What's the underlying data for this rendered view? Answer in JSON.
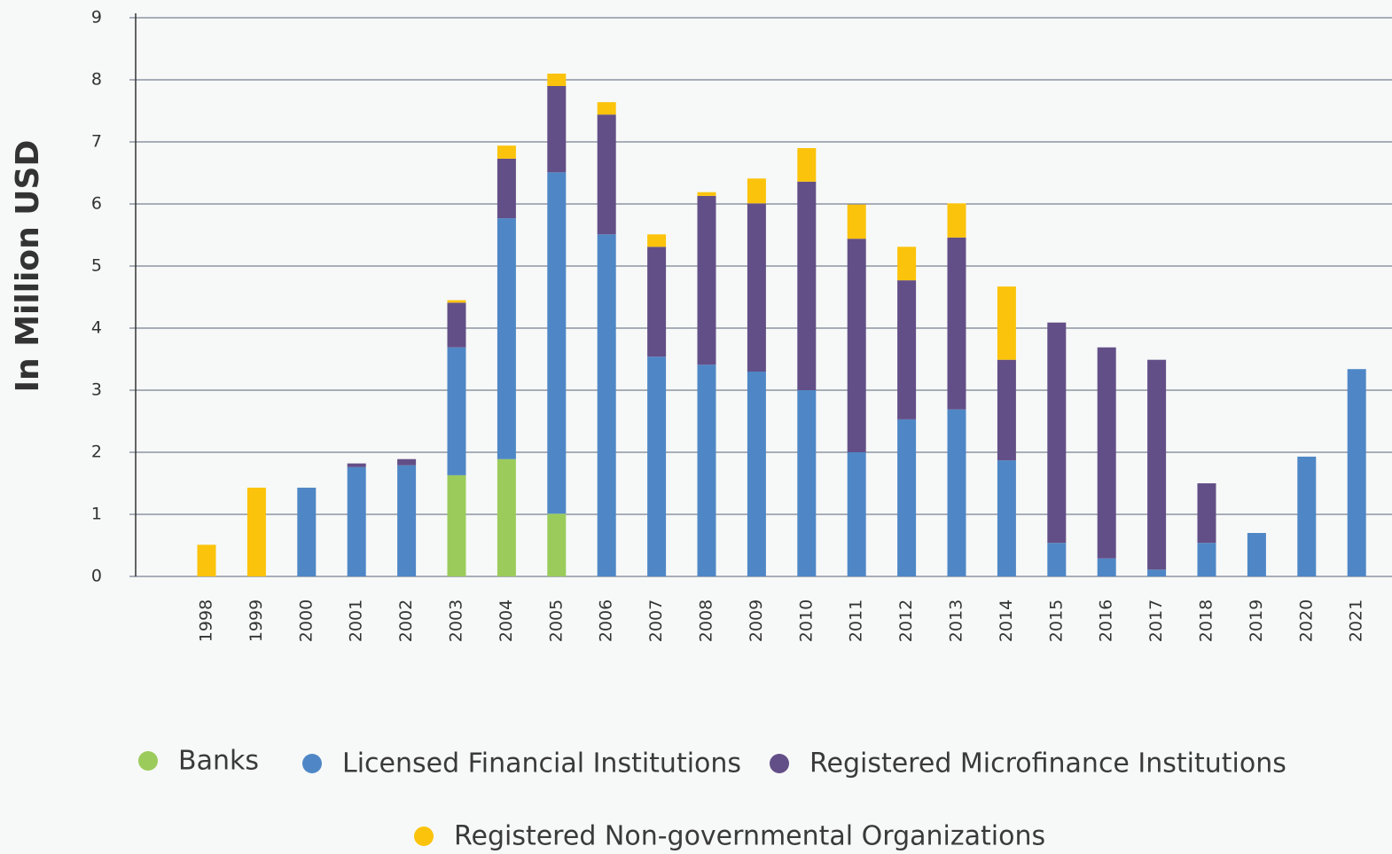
{
  "chart_data": {
    "type": "stacked_bar",
    "y_label": "In Million USD",
    "categories": [
      "1998",
      "1999",
      "2000",
      "2001",
      "2002",
      "2003",
      "2004",
      "2005",
      "2006",
      "2007",
      "2008",
      "2009",
      "2010",
      "2011",
      "2012",
      "2013",
      "2014",
      "2015",
      "2016",
      "2017",
      "2018",
      "2019",
      "2020",
      "2021"
    ],
    "series": [
      {
        "name": "Banks",
        "color": "#9bcb5b",
        "values": [
          0,
          0,
          0,
          0,
          0,
          1.63,
          1.89,
          1.01,
          0,
          0,
          0,
          0,
          0,
          0,
          0,
          0,
          0,
          0,
          0,
          0,
          0,
          0,
          0,
          0
        ]
      },
      {
        "name": "Licensed Financial Institutions",
        "color": "#4f87c6",
        "values": [
          0,
          0,
          1.43,
          1.76,
          1.79,
          2.06,
          3.88,
          5.5,
          5.51,
          3.54,
          3.41,
          3.3,
          3.0,
          2.0,
          2.53,
          2.69,
          1.87,
          0.54,
          0.29,
          0.11,
          0.54,
          0.7,
          1.93,
          3.34
        ]
      },
      {
        "name": "Registered Microfinance Institutions",
        "color": "#634f87",
        "values": [
          0,
          0,
          0,
          0.06,
          0.1,
          0.72,
          0.96,
          1.39,
          1.93,
          1.77,
          2.72,
          2.71,
          3.36,
          3.44,
          2.24,
          2.77,
          1.62,
          3.55,
          3.4,
          3.38,
          0.96,
          0,
          0,
          0
        ]
      },
      {
        "name": "Registered Non-governmental Organizations",
        "color": "#fbc30b",
        "values": [
          0.51,
          1.43,
          0,
          0,
          0,
          0.04,
          0.21,
          0.2,
          0.2,
          0.2,
          0.06,
          0.4,
          0.54,
          0.55,
          0.54,
          0.55,
          1.18,
          0,
          0,
          0,
          0,
          0,
          0,
          0
        ]
      }
    ],
    "ylim": [
      0,
      9
    ],
    "yticks": [
      0,
      1,
      2,
      3,
      4,
      5,
      6,
      7,
      8,
      9
    ],
    "grid": true
  }
}
